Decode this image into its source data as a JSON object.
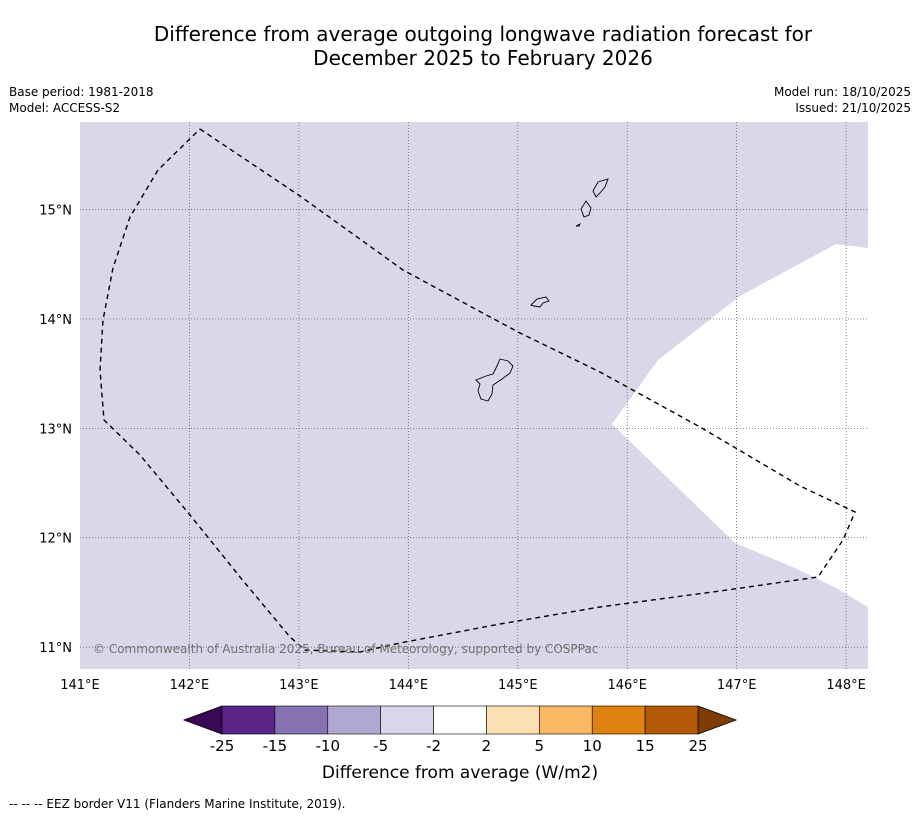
{
  "title": {
    "line1": "Difference from average outgoing longwave radiation forecast for",
    "line2": "December 2025 to February 2026"
  },
  "meta_left": {
    "base_period": "Base period: 1981-2018",
    "model": "Model: ACCESS-S2"
  },
  "meta_right": {
    "model_run": "Model run: 18/10/2025",
    "issued": "Issued: 21/10/2025"
  },
  "map": {
    "lon_range": [
      141.0,
      148.2
    ],
    "lat_range": [
      10.8,
      15.8
    ],
    "lon_ticks": [
      141,
      142,
      143,
      144,
      145,
      146,
      147,
      148
    ],
    "lon_labels": [
      "141°E",
      "142°E",
      "143°E",
      "144°E",
      "145°E",
      "146°E",
      "147°E",
      "148°E"
    ],
    "lat_ticks": [
      11,
      12,
      13,
      14,
      15
    ],
    "lat_labels": [
      "11°N",
      "12°N",
      "13°N",
      "14°N",
      "15°N"
    ],
    "background_class": "-5 to -2",
    "background_color": "#d8d8e8",
    "neutral_region_class": "-2 to 2",
    "neutral_region_color": "#ffffff",
    "copyright": "© Commonwealth of Australia 2025, Bureau of Meteorology, supported by COSPPac"
  },
  "colorbar": {
    "label": "Difference from average (W/m2)",
    "tick_labels": [
      "-25",
      "-15",
      "-10",
      "-5",
      "-2",
      "2",
      "5",
      "10",
      "15",
      "25"
    ],
    "low_extend_color": "#3b0a57",
    "high_extend_color": "#7f3b08",
    "colors": [
      "#5a2489",
      "#8473b0",
      "#b1a8d2",
      "#d8d8ea",
      "#ffffff",
      "#fde0b3",
      "#fbb862",
      "#e08212",
      "#b35807"
    ]
  },
  "footnote": "--  --  -- EEZ border V11 (Flanders Marine Institute, 2019)."
}
